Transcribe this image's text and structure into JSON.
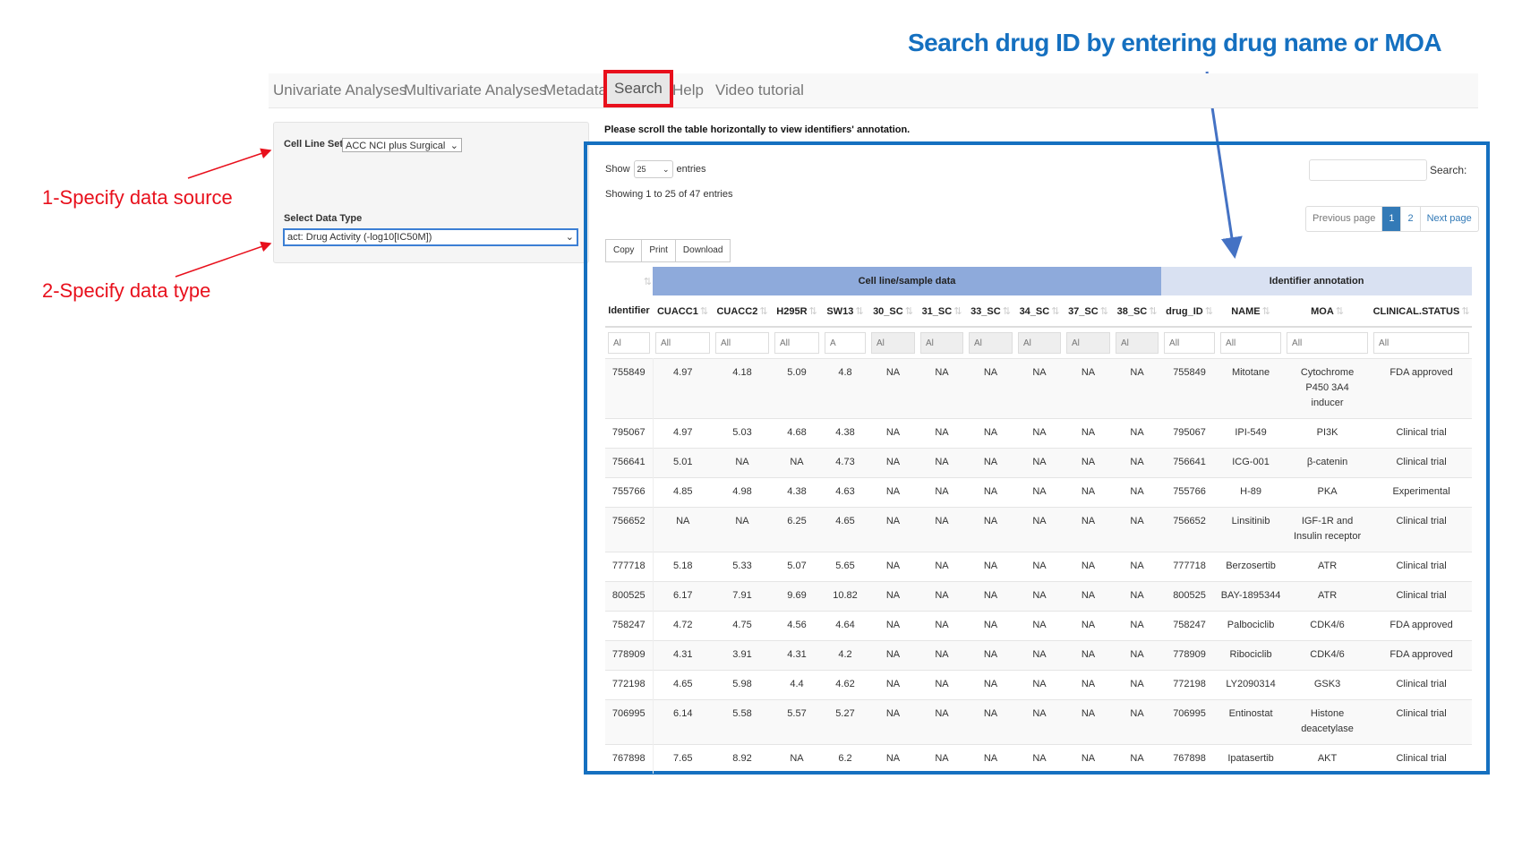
{
  "annotation": {
    "title": "Search drug ID by entering drug  name or MOA",
    "step1": "1-Specify data source",
    "step2": "2-Specify data type",
    "colors": {
      "red": "#e8101c",
      "blue": "#1570c0"
    }
  },
  "nav": {
    "items": [
      "Univariate Analyses",
      "Multivariate Analyses",
      "Metadata",
      "Search",
      "Help",
      "Video tutorial"
    ],
    "active": "Search"
  },
  "panel": {
    "cell_line_label": "Cell Line Set",
    "cell_line_value": "ACC NCI plus Surgical",
    "data_type_label": "Select Data Type",
    "data_type_value": "act: Drug Activity (-log10[IC50M])"
  },
  "main": {
    "note": "Please scroll the table horizontally to view identifiers' annotation.",
    "show_label": "Show",
    "show_value": "25",
    "entries_label": "entries",
    "info": "Showing 1 to 25 of 47 entries",
    "search_label": "Search:",
    "search_value": "",
    "buttons": [
      "Copy",
      "Print",
      "Download"
    ],
    "pager": {
      "prev": "Previous page",
      "pages": [
        "1",
        "2"
      ],
      "current": "1",
      "next": "Next page"
    },
    "group_headers": {
      "sample": "Cell line/sample data",
      "annotation": "Identifier annotation"
    },
    "group_colors": {
      "sample": "#8eaadb",
      "annotation": "#d9e1f2"
    },
    "columns": [
      "Identifier",
      "CUACC1",
      "CUACC2",
      "H295R",
      "SW13",
      "30_SC",
      "31_SC",
      "33_SC",
      "34_SC",
      "37_SC",
      "38_SC",
      "drug_ID",
      "NAME",
      "MOA",
      "CLINICAL.STATUS"
    ],
    "filters": [
      "Al",
      "All",
      "All",
      "All",
      "A",
      "Al",
      "Al",
      "Al",
      "Al",
      "Al",
      "Al",
      "All",
      "All",
      "All",
      "All"
    ],
    "rows": [
      [
        "755849",
        "4.97",
        "4.18",
        "5.09",
        "4.8",
        "NA",
        "NA",
        "NA",
        "NA",
        "NA",
        "NA",
        "755849",
        "Mitotane",
        "Cytochrome P450 3A4 inducer",
        "FDA approved"
      ],
      [
        "795067",
        "4.97",
        "5.03",
        "4.68",
        "4.38",
        "NA",
        "NA",
        "NA",
        "NA",
        "NA",
        "NA",
        "795067",
        "IPI-549",
        "PI3K",
        "Clinical trial"
      ],
      [
        "756641",
        "5.01",
        "NA",
        "NA",
        "4.73",
        "NA",
        "NA",
        "NA",
        "NA",
        "NA",
        "NA",
        "756641",
        "ICG-001",
        "β-catenin",
        "Clinical trial"
      ],
      [
        "755766",
        "4.85",
        "4.98",
        "4.38",
        "4.63",
        "NA",
        "NA",
        "NA",
        "NA",
        "NA",
        "NA",
        "755766",
        "H-89",
        "PKA",
        "Experimental"
      ],
      [
        "756652",
        "NA",
        "NA",
        "6.25",
        "4.65",
        "NA",
        "NA",
        "NA",
        "NA",
        "NA",
        "NA",
        "756652",
        "Linsitinib",
        "IGF-1R and Insulin receptor",
        "Clinical trial"
      ],
      [
        "777718",
        "5.18",
        "5.33",
        "5.07",
        "5.65",
        "NA",
        "NA",
        "NA",
        "NA",
        "NA",
        "NA",
        "777718",
        "Berzosertib",
        "ATR",
        "Clinical trial"
      ],
      [
        "800525",
        "6.17",
        "7.91",
        "9.69",
        "10.82",
        "NA",
        "NA",
        "NA",
        "NA",
        "NA",
        "NA",
        "800525",
        "BAY-1895344",
        "ATR",
        "Clinical trial"
      ],
      [
        "758247",
        "4.72",
        "4.75",
        "4.56",
        "4.64",
        "NA",
        "NA",
        "NA",
        "NA",
        "NA",
        "NA",
        "758247",
        "Palbociclib",
        "CDK4/6",
        "FDA approved"
      ],
      [
        "778909",
        "4.31",
        "3.91",
        "4.31",
        "4.2",
        "NA",
        "NA",
        "NA",
        "NA",
        "NA",
        "NA",
        "778909",
        "Ribociclib",
        "CDK4/6",
        "FDA approved"
      ],
      [
        "772198",
        "4.65",
        "5.98",
        "4.4",
        "4.62",
        "NA",
        "NA",
        "NA",
        "NA",
        "NA",
        "NA",
        "772198",
        "LY2090314",
        "GSK3",
        "Clinical trial"
      ],
      [
        "706995",
        "6.14",
        "5.58",
        "5.57",
        "5.27",
        "NA",
        "NA",
        "NA",
        "NA",
        "NA",
        "NA",
        "706995",
        "Entinostat",
        "Histone deacetylase",
        "Clinical trial"
      ],
      [
        "767898",
        "7.65",
        "8.92",
        "NA",
        "6.2",
        "NA",
        "NA",
        "NA",
        "NA",
        "NA",
        "NA",
        "767898",
        "Ipatasertib",
        "AKT",
        "Clinical trial"
      ]
    ]
  }
}
